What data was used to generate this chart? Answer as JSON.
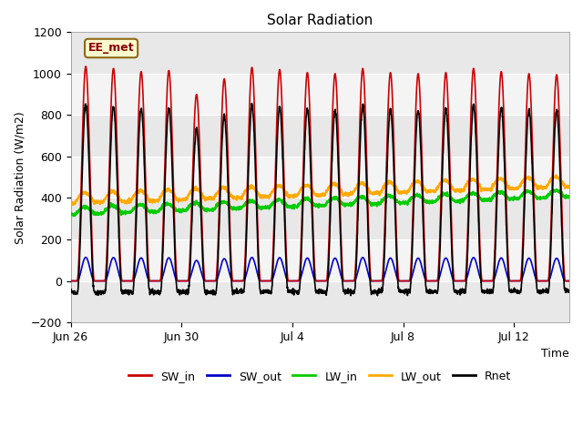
{
  "title": "Solar Radiation",
  "ylabel": "Solar Radiation (W/m2)",
  "xlabel": "Time",
  "ylim": [
    -200,
    1200
  ],
  "yticks": [
    -200,
    0,
    200,
    400,
    600,
    800,
    1000,
    1200
  ],
  "xtick_labels": [
    "Jun 26",
    "Jun 30",
    "Jul 4",
    "Jul 8",
    "Jul 12"
  ],
  "xtick_positions": [
    0,
    4,
    8,
    12,
    16
  ],
  "station_label": "EE_met",
  "series": {
    "SW_in": {
      "color": "#cc0000",
      "lw": 1.2
    },
    "SW_out": {
      "color": "#0000cc",
      "lw": 1.2
    },
    "LW_in": {
      "color": "#00cc00",
      "lw": 1.5
    },
    "LW_out": {
      "color": "#ffaa00",
      "lw": 1.5
    },
    "Rnet": {
      "color": "#000000",
      "lw": 1.2
    }
  },
  "legend_colors": {
    "SW_in": "#cc0000",
    "SW_out": "#0000cc",
    "LW_in": "#00cc00",
    "LW_out": "#ffaa00",
    "Rnet": "#000000"
  },
  "bg_color": "#ffffff",
  "plot_bg_color": "#f0f0f0",
  "grid_color": "#ffffff",
  "band_colors": [
    "#e8e8e8",
    "#f4f4f4"
  ],
  "n_days": 18,
  "pts_per_day": 144
}
